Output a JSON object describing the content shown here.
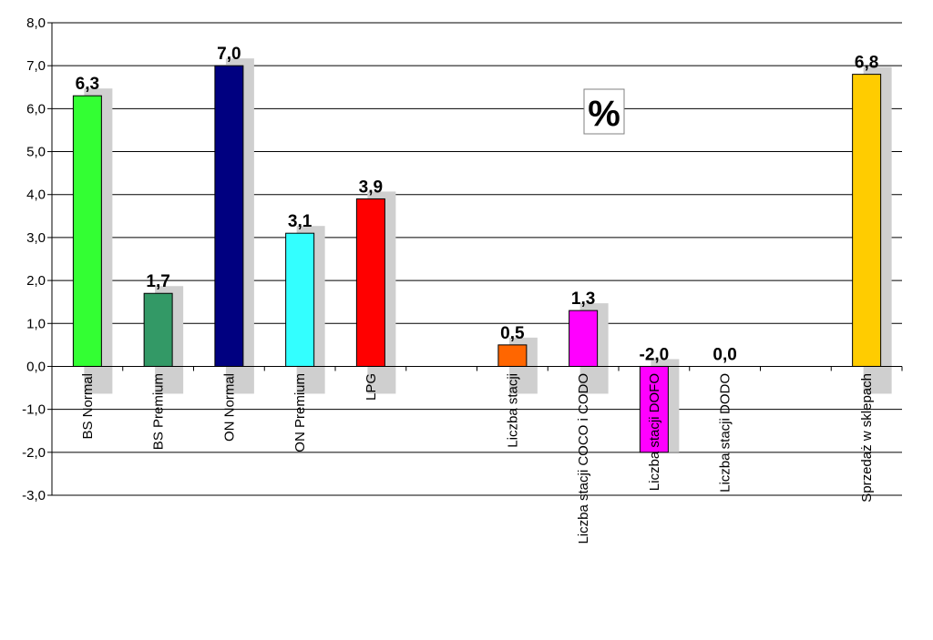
{
  "chart_data": {
    "type": "bar",
    "title": "",
    "xlabel": "",
    "ylabel": "",
    "unit_label": "%",
    "ylim": [
      -3,
      8
    ],
    "ytick_step": 1,
    "ytick_labels": [
      "-3,0",
      "-2,0",
      "-1,0",
      "0,0",
      "1,0",
      "2,0",
      "3,0",
      "4,0",
      "5,0",
      "6,0",
      "7,0",
      "8,0"
    ],
    "grid": true,
    "legend": "none",
    "categories": [
      "BS Normal",
      "BS Premium",
      "ON Normal",
      "ON Premium",
      "LPG",
      "",
      "Liczba stacji",
      "Liczba stacji COCO i CODO",
      "Liczba stacji DOFO",
      "Liczba stacji DODO",
      "",
      "Sprzedaż w sklepach"
    ],
    "values": [
      6.3,
      1.7,
      7.0,
      3.1,
      3.9,
      null,
      0.5,
      1.3,
      -2.0,
      0.0,
      null,
      6.8
    ],
    "value_labels": [
      "6,3",
      "1,7",
      "7,0",
      "3,1",
      "3,9",
      "",
      "0,5",
      "1,3",
      "-2,0",
      "0,0",
      "",
      "6,8"
    ],
    "colors": [
      "#33ff33",
      "#339966",
      "#000080",
      "#33ffff",
      "#ff0000",
      "",
      "#ff6600",
      "#ff00ff",
      "#ff00ff",
      "#ffffff",
      "",
      "#ffcc00"
    ]
  }
}
